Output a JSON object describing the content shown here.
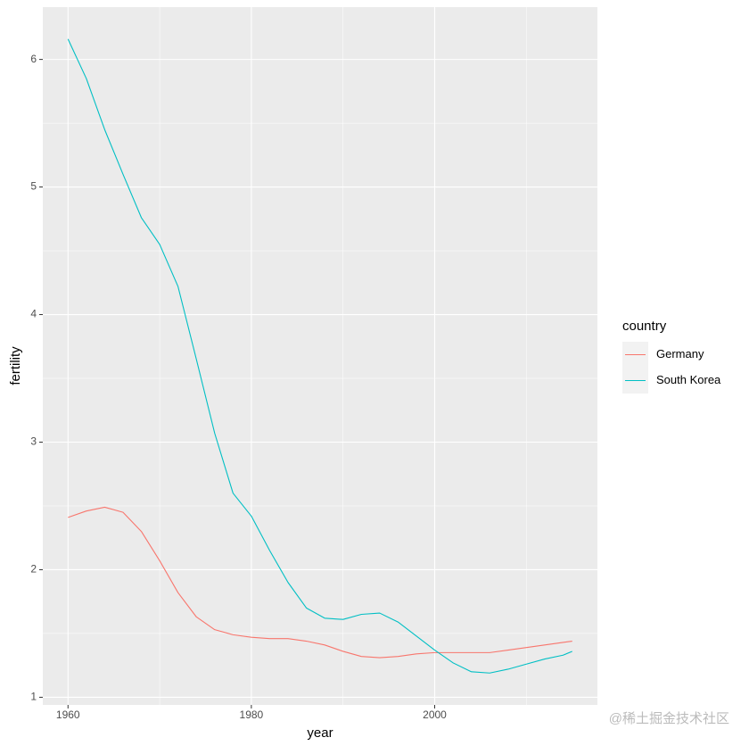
{
  "chart_data": {
    "type": "line",
    "x_label": "year",
    "y_label": "fertility",
    "legend_title": "country",
    "watermark": "@稀土掘金技术社区",
    "x": [
      1960,
      1962,
      1964,
      1966,
      1968,
      1970,
      1972,
      1974,
      1976,
      1978,
      1980,
      1982,
      1984,
      1986,
      1988,
      1990,
      1992,
      1994,
      1996,
      1998,
      2000,
      2002,
      2004,
      2006,
      2008,
      2010,
      2012,
      2014,
      2015
    ],
    "series": [
      {
        "name": "Germany",
        "color": "#F8766D",
        "values": [
          2.41,
          2.46,
          2.49,
          2.45,
          2.3,
          2.07,
          1.82,
          1.63,
          1.53,
          1.49,
          1.47,
          1.46,
          1.46,
          1.44,
          1.41,
          1.36,
          1.32,
          1.31,
          1.32,
          1.34,
          1.35,
          1.35,
          1.35,
          1.35,
          1.37,
          1.39,
          1.41,
          1.43,
          1.44
        ]
      },
      {
        "name": "South Korea",
        "color": "#00BFC4",
        "values": [
          6.16,
          5.85,
          5.45,
          5.1,
          4.76,
          4.55,
          4.22,
          3.65,
          3.07,
          2.6,
          2.42,
          2.15,
          1.9,
          1.7,
          1.62,
          1.61,
          1.65,
          1.66,
          1.59,
          1.48,
          1.37,
          1.27,
          1.2,
          1.19,
          1.22,
          1.26,
          1.3,
          1.33,
          1.36
        ]
      }
    ],
    "xlim": [
      1957.25,
      2017.75
    ],
    "xticks": [
      1960,
      1980,
      2000
    ],
    "x_minor_ticks": [
      1970,
      1990,
      2010
    ],
    "ylim": [
      0.94,
      6.41
    ],
    "yticks": [
      1,
      2,
      3,
      4,
      5,
      6
    ],
    "y_minor_ticks": [
      1.5,
      2.5,
      3.5,
      4.5,
      5.5
    ],
    "grid": true,
    "legend_position": "right"
  }
}
